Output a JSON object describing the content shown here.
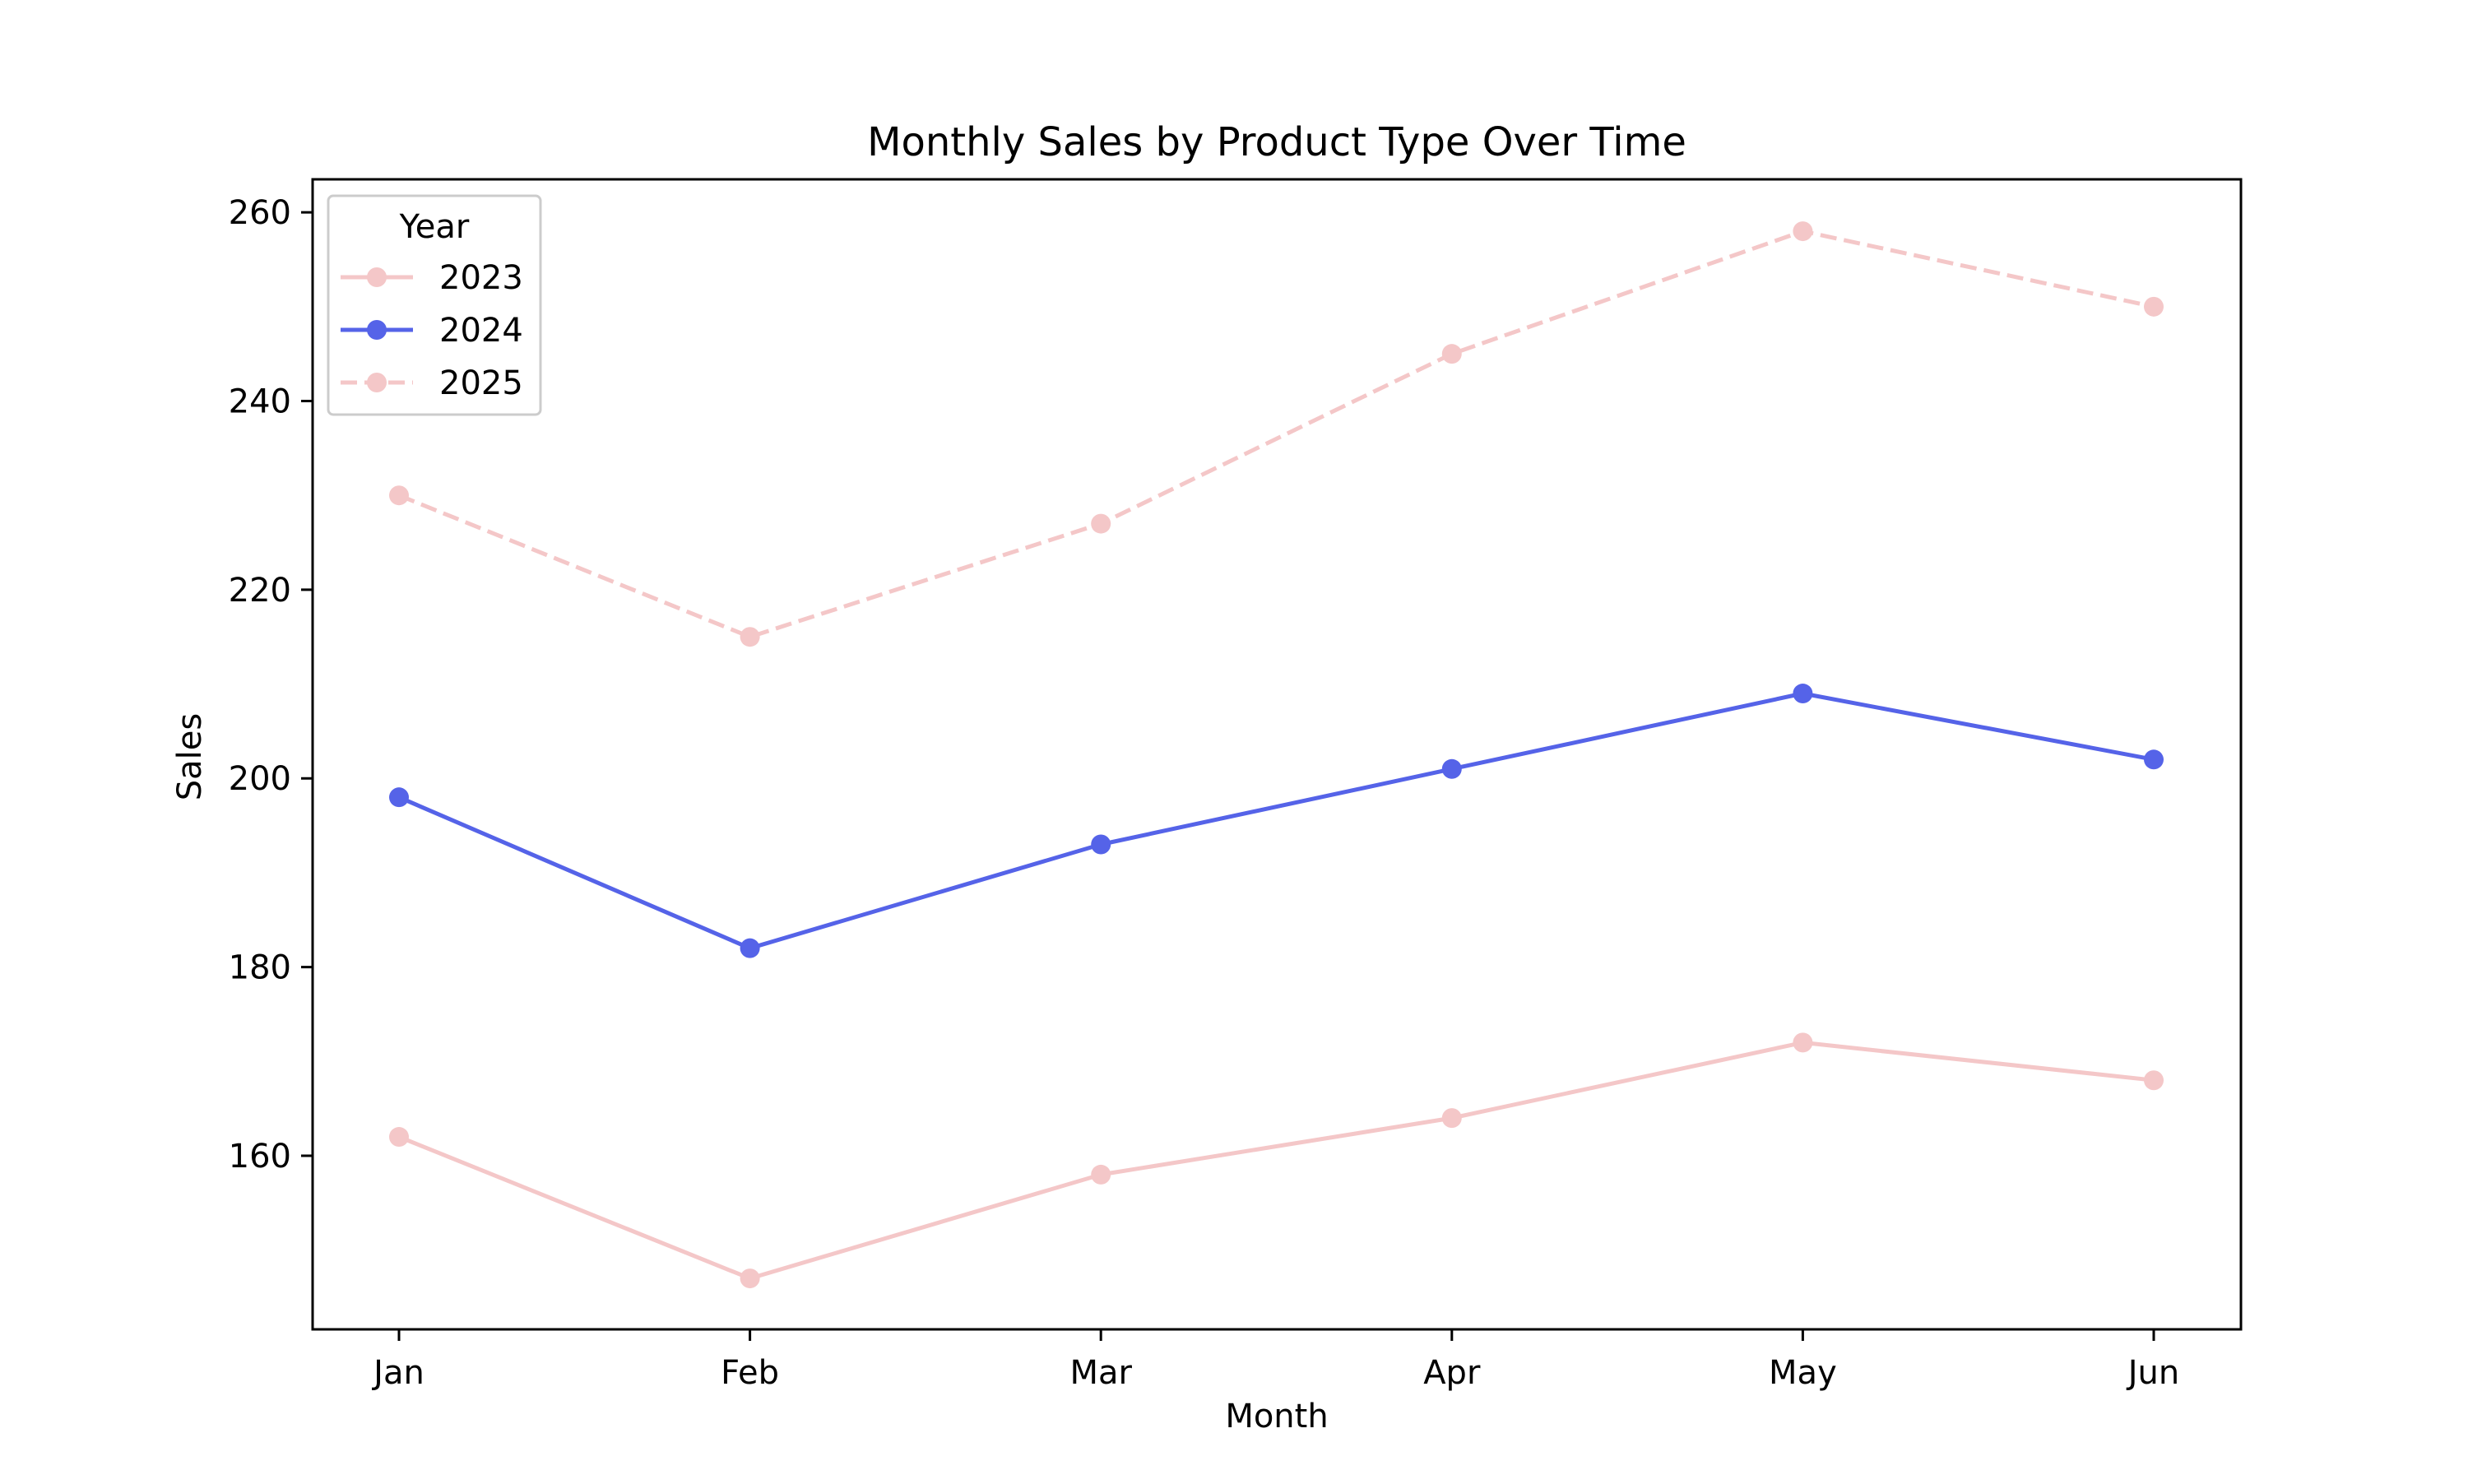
{
  "chart_data": {
    "type": "line",
    "title": "Monthly Sales by Product Type Over Time",
    "xlabel": "Month",
    "ylabel": "Sales",
    "categories": [
      "Jan",
      "Feb",
      "Mar",
      "Apr",
      "May",
      "Jun"
    ],
    "ylim": [
      141.6,
      263.5
    ],
    "yticks": [
      160,
      180,
      200,
      220,
      240,
      260
    ],
    "grid": false,
    "legend": {
      "title": "Year",
      "placement": "top-left"
    },
    "series": [
      {
        "name": "2023",
        "values": [
          162,
          147,
          158,
          164,
          172,
          168
        ],
        "color": "#f4c7c8",
        "line_style": "solid",
        "marker": "circle"
      },
      {
        "name": "2024",
        "values": [
          198,
          182,
          193,
          201,
          209,
          202
        ],
        "color": "#5563e8",
        "line_style": "solid",
        "marker": "circle"
      },
      {
        "name": "2025",
        "values": [
          230,
          215,
          227,
          245,
          258,
          250
        ],
        "color": "#f4c7c8",
        "line_style": "dashed",
        "marker": "circle"
      }
    ]
  }
}
